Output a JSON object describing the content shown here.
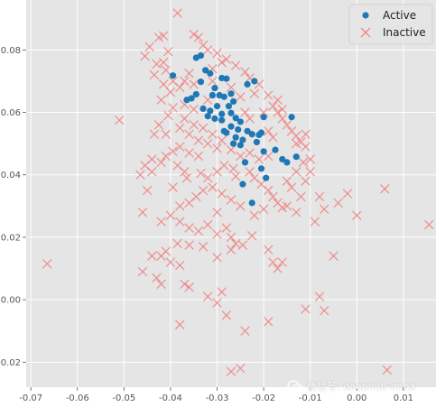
{
  "chart_data": {
    "type": "scatter",
    "title": "",
    "xlabel": "",
    "ylabel": "",
    "xlim": [
      -0.071,
      0.017
    ],
    "ylim": [
      -0.028,
      0.096
    ],
    "x_ticks": [
      -0.07,
      -0.06,
      -0.05,
      -0.04,
      -0.03,
      -0.02,
      -0.01,
      0.0,
      0.01
    ],
    "x_tick_labels": [
      "-0.07",
      "-0.06",
      "-0.05",
      "-0.04",
      "-0.03",
      "-0.02",
      "-0.01",
      "0.00",
      "0.01"
    ],
    "y_ticks": [
      -0.02,
      0.0,
      0.02,
      0.04,
      0.06,
      0.08
    ],
    "y_tick_labels": [
      "-0.02",
      "0.00",
      "0.02",
      "0.04",
      "0.06",
      "0.08"
    ],
    "grid": true,
    "legend_position": "top-right",
    "series": [
      {
        "name": "Active",
        "marker": "circle",
        "color": "#1f77b4",
        "points": [
          [
            -0.0395,
            0.0718
          ],
          [
            -0.0345,
            0.0775
          ],
          [
            -0.0335,
            0.0782
          ],
          [
            -0.0325,
            0.0735
          ],
          [
            -0.0315,
            0.0725
          ],
          [
            -0.0335,
            0.0698
          ],
          [
            -0.029,
            0.071
          ],
          [
            -0.028,
            0.0708
          ],
          [
            -0.0305,
            0.0678
          ],
          [
            -0.031,
            0.0655
          ],
          [
            -0.0345,
            0.0658
          ],
          [
            -0.0365,
            0.064
          ],
          [
            -0.0355,
            0.0645
          ],
          [
            -0.0265,
            0.0635
          ],
          [
            -0.0295,
            0.0655
          ],
          [
            -0.0285,
            0.065
          ],
          [
            -0.0275,
            0.062
          ],
          [
            -0.03,
            0.062
          ],
          [
            -0.0315,
            0.0605
          ],
          [
            -0.033,
            0.0612
          ],
          [
            -0.032,
            0.0588
          ],
          [
            -0.0305,
            0.058
          ],
          [
            -0.029,
            0.0575
          ],
          [
            -0.027,
            0.0598
          ],
          [
            -0.026,
            0.0582
          ],
          [
            -0.025,
            0.057
          ],
          [
            -0.0255,
            0.0545
          ],
          [
            -0.027,
            0.0555
          ],
          [
            -0.028,
            0.0535
          ],
          [
            -0.026,
            0.052
          ],
          [
            -0.0245,
            0.0512
          ],
          [
            -0.025,
            0.0495
          ],
          [
            -0.0235,
            0.054
          ],
          [
            -0.0225,
            0.053
          ],
          [
            -0.021,
            0.0528
          ],
          [
            -0.0215,
            0.0505
          ],
          [
            -0.0205,
            0.0535
          ],
          [
            -0.02,
            0.0475
          ],
          [
            -0.0205,
            0.042
          ],
          [
            -0.0195,
            0.039
          ],
          [
            -0.024,
            0.044
          ],
          [
            -0.0245,
            0.037
          ],
          [
            -0.0225,
            0.031
          ],
          [
            -0.0175,
            0.048
          ],
          [
            -0.016,
            0.045
          ],
          [
            -0.015,
            0.044
          ],
          [
            -0.013,
            0.0458
          ],
          [
            -0.014,
            0.0585
          ],
          [
            -0.02,
            0.0585
          ],
          [
            -0.0235,
            0.069
          ],
          [
            -0.022,
            0.07
          ],
          [
            -0.027,
            0.066
          ],
          [
            -0.029,
            0.0595
          ],
          [
            -0.0285,
            0.054
          ],
          [
            -0.0265,
            0.05
          ]
        ]
      },
      {
        "name": "Inactive",
        "marker": "x",
        "color": "#f08080",
        "points": [
          [
            -0.0385,
            0.0918
          ],
          [
            -0.0415,
            0.0845
          ],
          [
            -0.0425,
            0.084
          ],
          [
            -0.0445,
            0.081
          ],
          [
            -0.0455,
            0.078
          ],
          [
            -0.0405,
            0.0795
          ],
          [
            -0.0415,
            0.076
          ],
          [
            -0.043,
            0.0755
          ],
          [
            -0.041,
            0.0735
          ],
          [
            -0.0435,
            0.072
          ],
          [
            -0.0395,
            0.07
          ],
          [
            -0.0415,
            0.069
          ],
          [
            -0.04,
            0.0665
          ],
          [
            -0.042,
            0.064
          ],
          [
            -0.0395,
            0.0615
          ],
          [
            -0.0405,
            0.059
          ],
          [
            -0.0425,
            0.056
          ],
          [
            -0.041,
            0.053
          ],
          [
            -0.0435,
            0.053
          ],
          [
            -0.051,
            0.0575
          ],
          [
            -0.035,
            0.085
          ],
          [
            -0.034,
            0.084
          ],
          [
            -0.033,
            0.0815
          ],
          [
            -0.032,
            0.08
          ],
          [
            -0.03,
            0.079
          ],
          [
            -0.028,
            0.077
          ],
          [
            -0.026,
            0.075
          ],
          [
            -0.024,
            0.073
          ],
          [
            -0.023,
            0.071
          ],
          [
            -0.029,
            0.076
          ],
          [
            -0.031,
            0.074
          ],
          [
            -0.036,
            0.0725
          ],
          [
            -0.037,
            0.07
          ],
          [
            -0.038,
            0.068
          ],
          [
            -0.035,
            0.069
          ],
          [
            -0.021,
            0.069
          ],
          [
            -0.019,
            0.0655
          ],
          [
            -0.018,
            0.062
          ],
          [
            -0.017,
            0.06
          ],
          [
            -0.016,
            0.058
          ],
          [
            -0.015,
            0.056
          ],
          [
            -0.014,
            0.054
          ],
          [
            -0.013,
            0.0525
          ],
          [
            -0.012,
            0.0505
          ],
          [
            -0.011,
            0.053
          ],
          [
            -0.02,
            0.06
          ],
          [
            -0.023,
            0.058
          ],
          [
            -0.024,
            0.06
          ],
          [
            -0.035,
            0.061
          ],
          [
            -0.037,
            0.058
          ],
          [
            -0.038,
            0.055
          ],
          [
            -0.036,
            0.053
          ],
          [
            -0.034,
            0.051
          ],
          [
            -0.032,
            0.05
          ],
          [
            -0.03,
            0.0485
          ],
          [
            -0.038,
            0.049
          ],
          [
            -0.0395,
            0.0475
          ],
          [
            -0.041,
            0.046
          ],
          [
            -0.042,
            0.044
          ],
          [
            -0.044,
            0.045
          ],
          [
            -0.0455,
            0.043
          ],
          [
            -0.0385,
            0.043
          ],
          [
            -0.037,
            0.041
          ],
          [
            -0.0365,
            0.039
          ],
          [
            -0.0335,
            0.0405
          ],
          [
            -0.032,
            0.039
          ],
          [
            -0.03,
            0.041
          ],
          [
            -0.0285,
            0.043
          ],
          [
            -0.0265,
            0.042
          ],
          [
            -0.026,
            0.0395
          ],
          [
            -0.023,
            0.041
          ],
          [
            -0.022,
            0.039
          ],
          [
            -0.0205,
            0.037
          ],
          [
            -0.019,
            0.035
          ],
          [
            -0.018,
            0.033
          ],
          [
            -0.017,
            0.031
          ],
          [
            -0.016,
            0.0295
          ],
          [
            -0.015,
            0.038
          ],
          [
            -0.014,
            0.036
          ],
          [
            -0.012,
            0.033
          ],
          [
            -0.011,
            0.038
          ],
          [
            -0.01,
            0.041
          ],
          [
            -0.008,
            0.033
          ],
          [
            -0.007,
            0.029
          ],
          [
            -0.009,
            0.025
          ],
          [
            -0.013,
            0.028
          ],
          [
            -0.015,
            0.03
          ],
          [
            -0.02,
            0.029
          ],
          [
            -0.022,
            0.027
          ],
          [
            -0.025,
            0.03
          ],
          [
            -0.027,
            0.032
          ],
          [
            -0.029,
            0.034
          ],
          [
            -0.031,
            0.036
          ],
          [
            -0.033,
            0.035
          ],
          [
            -0.0345,
            0.033
          ],
          [
            -0.036,
            0.031
          ],
          [
            -0.038,
            0.03
          ],
          [
            -0.04,
            0.027
          ],
          [
            -0.042,
            0.025
          ],
          [
            -0.045,
            0.035
          ],
          [
            -0.046,
            0.028
          ],
          [
            -0.038,
            0.025
          ],
          [
            -0.036,
            0.023
          ],
          [
            -0.034,
            0.022
          ],
          [
            -0.032,
            0.024
          ],
          [
            -0.03,
            0.021
          ],
          [
            -0.028,
            0.023
          ],
          [
            -0.027,
            0.02
          ],
          [
            -0.026,
            0.018
          ],
          [
            -0.0245,
            0.0175
          ],
          [
            -0.0225,
            0.0205
          ],
          [
            -0.03,
            0.028
          ],
          [
            -0.0385,
            0.018
          ],
          [
            -0.036,
            0.0175
          ],
          [
            -0.033,
            0.017
          ],
          [
            -0.041,
            0.0155
          ],
          [
            -0.042,
            0.014
          ],
          [
            -0.044,
            0.014
          ],
          [
            -0.04,
            0.012
          ],
          [
            -0.038,
            0.011
          ],
          [
            -0.03,
            0.0135
          ],
          [
            -0.027,
            0.016
          ],
          [
            -0.019,
            0.016
          ],
          [
            -0.018,
            0.012
          ],
          [
            -0.017,
            0.01
          ],
          [
            -0.016,
            0.012
          ],
          [
            -0.046,
            0.009
          ],
          [
            -0.043,
            0.007
          ],
          [
            -0.042,
            0.005
          ],
          [
            -0.037,
            0.005
          ],
          [
            -0.036,
            0.004
          ],
          [
            -0.032,
            0.001
          ],
          [
            -0.029,
            0.0025
          ],
          [
            -0.03,
            -0.001
          ],
          [
            -0.028,
            -0.005
          ],
          [
            -0.038,
            -0.008
          ],
          [
            -0.024,
            -0.01
          ],
          [
            -0.019,
            -0.007
          ],
          [
            -0.027,
            -0.023
          ],
          [
            -0.025,
            -0.022
          ],
          [
            -0.011,
            -0.003
          ],
          [
            -0.007,
            -0.0035
          ],
          [
            -0.008,
            0.001
          ],
          [
            -0.005,
            0.014
          ],
          [
            -0.0665,
            0.0115
          ],
          [
            0.0,
            0.027
          ],
          [
            -0.004,
            0.031
          ],
          [
            -0.002,
            0.034
          ],
          [
            0.006,
            0.0355
          ],
          [
            0.0155,
            0.024
          ],
          [
            0.0065,
            -0.0225
          ],
          [
            -0.0115,
            0.044
          ],
          [
            -0.013,
            0.041
          ],
          [
            -0.01,
            0.045
          ],
          [
            -0.011,
            0.049
          ],
          [
            -0.013,
            0.05
          ],
          [
            -0.018,
            0.052
          ],
          [
            -0.019,
            0.054
          ],
          [
            -0.016,
            0.061
          ],
          [
            -0.017,
            0.064
          ],
          [
            -0.025,
            0.065
          ],
          [
            -0.027,
            0.068
          ],
          [
            -0.031,
            0.07
          ],
          [
            -0.022,
            0.066
          ],
          [
            -0.032,
            0.064
          ],
          [
            -0.037,
            0.0625
          ],
          [
            -0.035,
            0.056
          ],
          [
            -0.033,
            0.055
          ],
          [
            -0.031,
            0.053
          ],
          [
            -0.029,
            0.051
          ],
          [
            -0.027,
            0.048
          ],
          [
            -0.025,
            0.046
          ],
          [
            -0.023,
            0.047
          ],
          [
            -0.021,
            0.045
          ],
          [
            -0.019,
            0.046
          ],
          [
            -0.034,
            0.046
          ],
          [
            -0.036,
            0.047
          ],
          [
            -0.0395,
            0.036
          ],
          [
            -0.044,
            0.041
          ],
          [
            -0.0465,
            0.04
          ]
        ]
      }
    ]
  },
  "watermark": {
    "text": "微信号: deephub-imba"
  }
}
